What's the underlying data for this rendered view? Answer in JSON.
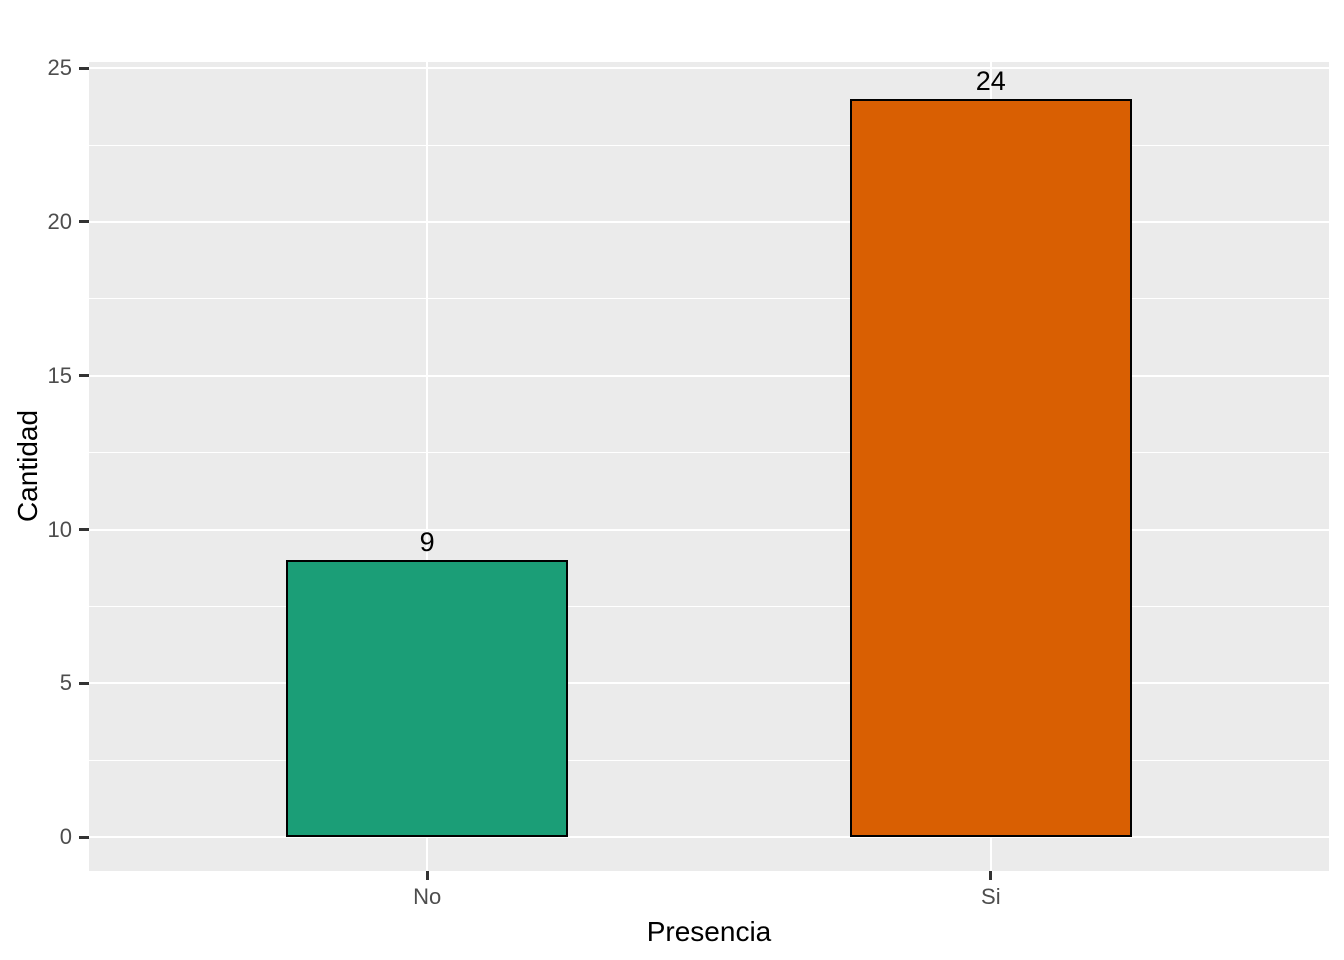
{
  "chart_data": {
    "type": "bar",
    "title": "",
    "xlabel": "Presencia",
    "ylabel": "Cantidad",
    "categories": [
      "No",
      "Si"
    ],
    "values": [
      9,
      24
    ],
    "bar_labels": [
      "9",
      "24"
    ],
    "series": [
      {
        "name": "No",
        "value": 9,
        "color": "#1B9E77"
      },
      {
        "name": "Si",
        "value": 24,
        "color": "#D95F02"
      }
    ],
    "bar_colors": [
      "#1B9E77",
      "#D95F02"
    ],
    "bar_border_color": "#000000",
    "ylim": [
      -1.1,
      25.2
    ],
    "ytick_labels": [
      "0",
      "5",
      "10",
      "15",
      "20",
      "25"
    ],
    "ytick_values": [
      0,
      5,
      10,
      15,
      20,
      25
    ],
    "yminor_values": [
      2.5,
      7.5,
      12.5,
      17.5,
      22.5
    ],
    "legend_position": "none",
    "grid": "on",
    "panel_background": "#EBEBEB",
    "grid_major_color": "#FFFFFF",
    "grid_minor_color": "#FFFFFF",
    "tick_mark_color": "#333333",
    "tick_label_color": "#4D4D4D",
    "axis_title_color": "#000000",
    "bar_value_label_color": "#000000"
  }
}
